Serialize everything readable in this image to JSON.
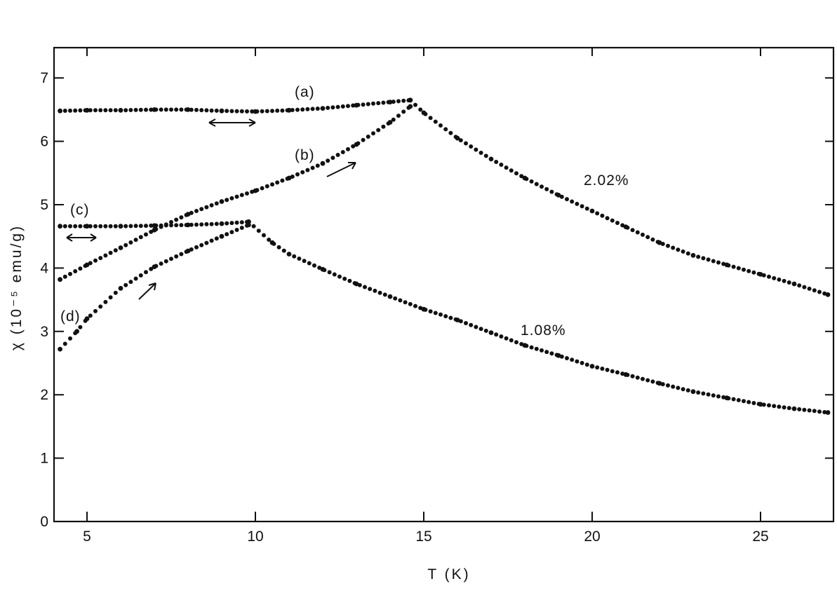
{
  "chart_data": {
    "type": "scatter",
    "xlabel": "T    (K)",
    "ylabel": "χ   (10⁻⁵ emu/g)",
    "xlim": [
      4,
      27
    ],
    "ylim": [
      0,
      7.5
    ],
    "xticks": [
      5,
      10,
      15,
      20,
      25
    ],
    "xtick_labels": [
      "5",
      "10",
      "15",
      "20",
      "25"
    ],
    "yticks": [
      0,
      1,
      2,
      3,
      4,
      5,
      6,
      7
    ],
    "ytick_labels": [
      "0",
      "1",
      "2",
      "3",
      "4",
      "5",
      "6",
      "7"
    ],
    "grid": false,
    "series": [
      {
        "name": "(a)",
        "points": [
          [
            4.2,
            6.48
          ],
          [
            5,
            6.49
          ],
          [
            6,
            6.49
          ],
          [
            7,
            6.5
          ],
          [
            8,
            6.5
          ],
          [
            9,
            6.48
          ],
          [
            10,
            6.47
          ],
          [
            11,
            6.49
          ],
          [
            12,
            6.52
          ],
          [
            13,
            6.57
          ],
          [
            14,
            6.62
          ],
          [
            14.6,
            6.65
          ]
        ]
      },
      {
        "name": "(b)",
        "points": [
          [
            4.2,
            3.82
          ],
          [
            5,
            4.05
          ],
          [
            6,
            4.32
          ],
          [
            7,
            4.6
          ],
          [
            8,
            4.85
          ],
          [
            9,
            5.05
          ],
          [
            10,
            5.22
          ],
          [
            11,
            5.42
          ],
          [
            12,
            5.65
          ],
          [
            13,
            5.95
          ],
          [
            14,
            6.3
          ],
          [
            14.6,
            6.55
          ]
        ]
      },
      {
        "name": "(c)",
        "points": [
          [
            4.2,
            4.66
          ],
          [
            5,
            4.66
          ],
          [
            6,
            4.66
          ],
          [
            7,
            4.67
          ],
          [
            8,
            4.68
          ],
          [
            9,
            4.7
          ],
          [
            9.8,
            4.73
          ]
        ]
      },
      {
        "name": "(d)",
        "points": [
          [
            4.2,
            2.72
          ],
          [
            4.7,
            3.0
          ],
          [
            5,
            3.2
          ],
          [
            6,
            3.68
          ],
          [
            7,
            4.02
          ],
          [
            8,
            4.27
          ],
          [
            9,
            4.5
          ],
          [
            9.8,
            4.68
          ]
        ]
      },
      {
        "name": "2.02%",
        "points": [
          [
            14.6,
            6.65
          ],
          [
            15,
            6.45
          ],
          [
            16,
            6.05
          ],
          [
            17,
            5.72
          ],
          [
            18,
            5.42
          ],
          [
            19,
            5.15
          ],
          [
            20,
            4.9
          ],
          [
            21,
            4.65
          ],
          [
            22,
            4.4
          ],
          [
            23,
            4.2
          ],
          [
            24,
            4.05
          ],
          [
            25,
            3.9
          ],
          [
            26,
            3.75
          ],
          [
            27,
            3.58
          ]
        ]
      },
      {
        "name": "1.08%",
        "points": [
          [
            9.8,
            4.73
          ],
          [
            10.5,
            4.4
          ],
          [
            11,
            4.22
          ],
          [
            12,
            3.98
          ],
          [
            13,
            3.75
          ],
          [
            14,
            3.55
          ],
          [
            15,
            3.35
          ],
          [
            16,
            3.18
          ],
          [
            17,
            2.98
          ],
          [
            18,
            2.78
          ],
          [
            19,
            2.62
          ],
          [
            20,
            2.45
          ],
          [
            21,
            2.32
          ],
          [
            22,
            2.18
          ],
          [
            23,
            2.05
          ],
          [
            24,
            1.95
          ],
          [
            25,
            1.85
          ],
          [
            26,
            1.78
          ],
          [
            27,
            1.72
          ]
        ]
      }
    ],
    "annotations": {
      "a": "(a)",
      "b": "(b)",
      "c": "(c)",
      "d": "(d)",
      "pct_high": "2.02%",
      "pct_low": "1.08%"
    }
  }
}
